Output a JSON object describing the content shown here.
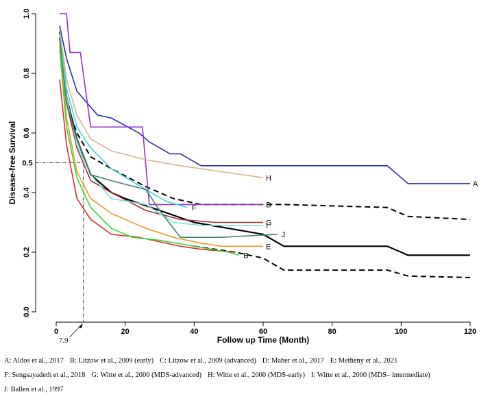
{
  "chart_data": {
    "type": "line",
    "title": "",
    "xlabel": "Follow up Time (Month)",
    "ylabel": "Disease-free Survival",
    "xlim": [
      0,
      120
    ],
    "ylim": [
      0.0,
      1.0
    ],
    "x_ticks": [
      0,
      20,
      40,
      60,
      80,
      100,
      120
    ],
    "y_ticks": [
      0.0,
      0.2,
      0.4,
      0.6,
      0.8,
      1.0
    ],
    "y_ticks_extra": [
      0.5
    ],
    "annotation": {
      "label": "7.9",
      "x": 7.9,
      "y": 0.5
    },
    "series": [
      {
        "id": "A",
        "color": "#2630a6",
        "dash": false,
        "label_x": 120,
        "points": [
          [
            1,
            0.96
          ],
          [
            3,
            0.85
          ],
          [
            6,
            0.74
          ],
          [
            12,
            0.66
          ],
          [
            16,
            0.65
          ],
          [
            24,
            0.6
          ],
          [
            27,
            0.57
          ],
          [
            33,
            0.53
          ],
          [
            36,
            0.53
          ],
          [
            42,
            0.49
          ],
          [
            60,
            0.49
          ],
          [
            96,
            0.49
          ],
          [
            102,
            0.43
          ],
          [
            120,
            0.43
          ]
        ]
      },
      {
        "id": "B",
        "color": "#000000",
        "dash": false,
        "label_x": null,
        "points": [
          [
            1,
            0.94
          ],
          [
            3,
            0.72
          ],
          [
            6,
            0.58
          ],
          [
            10,
            0.46
          ],
          [
            16,
            0.4
          ],
          [
            20,
            0.38
          ],
          [
            30,
            0.34
          ],
          [
            40,
            0.3
          ],
          [
            60,
            0.26
          ],
          [
            66,
            0.22
          ],
          [
            96,
            0.22
          ],
          [
            102,
            0.19
          ],
          [
            120,
            0.19
          ]
        ]
      },
      {
        "id": "C",
        "color": "#000000",
        "dash": true,
        "label_x": null,
        "points": [
          [
            1,
            0.92
          ],
          [
            3,
            0.7
          ],
          [
            6,
            0.6
          ],
          [
            10,
            0.52
          ],
          [
            16,
            0.48
          ],
          [
            26,
            0.42
          ],
          [
            34,
            0.38
          ],
          [
            42,
            0.36
          ],
          [
            60,
            0.36
          ],
          [
            66,
            0.36
          ],
          [
            96,
            0.35
          ],
          [
            102,
            0.32
          ],
          [
            120,
            0.31
          ],
          [
            60.5,
            0.15
          ]
        ]
      },
      {
        "id": "D",
        "color": "#9630c4",
        "dash": false,
        "label_x": 60,
        "points": [
          [
            1,
            1.0
          ],
          [
            3,
            1.0
          ],
          [
            4,
            0.87
          ],
          [
            7,
            0.87
          ],
          [
            10,
            0.62
          ],
          [
            20,
            0.62
          ],
          [
            25,
            0.62
          ],
          [
            27,
            0.36
          ],
          [
            60,
            0.36
          ]
        ]
      },
      {
        "id": "E",
        "color": "#e89a1e",
        "dash": false,
        "label_x": 60,
        "points": [
          [
            1,
            0.9
          ],
          [
            3,
            0.65
          ],
          [
            6,
            0.47
          ],
          [
            10,
            0.38
          ],
          [
            16,
            0.33
          ],
          [
            26,
            0.28
          ],
          [
            34,
            0.25
          ],
          [
            42,
            0.23
          ],
          [
            48,
            0.22
          ],
          [
            60,
            0.22
          ]
        ]
      },
      {
        "id": "F",
        "color": "#3ad6e0",
        "dash": false,
        "label_x": 38,
        "points": [
          [
            1,
            0.95
          ],
          [
            3,
            0.75
          ],
          [
            6,
            0.62
          ],
          [
            10,
            0.55
          ],
          [
            16,
            0.48
          ],
          [
            26,
            0.41
          ],
          [
            32,
            0.37
          ],
          [
            38,
            0.35
          ]
        ]
      },
      {
        "id": "G",
        "color": "#a03030",
        "dash": false,
        "label_x": 60,
        "points": [
          [
            1,
            0.93
          ],
          [
            3,
            0.7
          ],
          [
            6,
            0.55
          ],
          [
            10,
            0.44
          ],
          [
            16,
            0.4
          ],
          [
            26,
            0.34
          ],
          [
            36,
            0.31
          ],
          [
            46,
            0.3
          ],
          [
            60,
            0.3
          ]
        ]
      },
      {
        "id": "H",
        "color": "#d9b48a",
        "dash": false,
        "label_x": 60,
        "points": [
          [
            1,
            0.95
          ],
          [
            3,
            0.78
          ],
          [
            6,
            0.66
          ],
          [
            10,
            0.58
          ],
          [
            16,
            0.54
          ],
          [
            26,
            0.51
          ],
          [
            36,
            0.49
          ],
          [
            48,
            0.47
          ],
          [
            60,
            0.45
          ]
        ]
      },
      {
        "id": "I",
        "color": "#7fe0d8",
        "dash": false,
        "label_x": 60,
        "points": [
          [
            1,
            0.93
          ],
          [
            3,
            0.72
          ],
          [
            6,
            0.56
          ],
          [
            10,
            0.46
          ],
          [
            16,
            0.38
          ],
          [
            26,
            0.36
          ],
          [
            34,
            0.3
          ],
          [
            42,
            0.29
          ],
          [
            60,
            0.29
          ]
        ]
      },
      {
        "id": "J",
        "color": "#3f7f6b",
        "dash": false,
        "label_x": 64,
        "points": [
          [
            1,
            0.92
          ],
          [
            3,
            0.7
          ],
          [
            6,
            0.58
          ],
          [
            10,
            0.46
          ],
          [
            16,
            0.44
          ],
          [
            26,
            0.41
          ],
          [
            30,
            0.34
          ],
          [
            36,
            0.25
          ],
          [
            48,
            0.25
          ],
          [
            64,
            0.26
          ]
        ]
      },
      {
        "id": "K",
        "color": "#e02828",
        "dash": false,
        "label_x": null,
        "points": [
          [
            1,
            0.78
          ],
          [
            3,
            0.56
          ],
          [
            6,
            0.38
          ],
          [
            10,
            0.31
          ],
          [
            16,
            0.26
          ],
          [
            24,
            0.25
          ],
          [
            36,
            0.22
          ],
          [
            42,
            0.21
          ],
          [
            52,
            0.2
          ]
        ]
      },
      {
        "id": "L",
        "color": "#37d637",
        "dash": false,
        "label_x": null,
        "points": [
          [
            1,
            0.88
          ],
          [
            3,
            0.62
          ],
          [
            6,
            0.45
          ],
          [
            10,
            0.35
          ],
          [
            16,
            0.28
          ],
          [
            22,
            0.25
          ],
          [
            30,
            0.24
          ],
          [
            40,
            0.22
          ],
          [
            50,
            0.2
          ],
          [
            53,
            0.19
          ]
        ]
      }
    ],
    "end_labels": [
      {
        "text": "A",
        "x": 120,
        "y": 0.43
      },
      {
        "text": "H",
        "x": 60,
        "y": 0.45
      },
      {
        "text": "D",
        "x": 60,
        "y": 0.36
      },
      {
        "text": "F",
        "x": 38.5,
        "y": 0.35
      },
      {
        "text": "G",
        "x": 60,
        "y": 0.3
      },
      {
        "text": "I",
        "x": 60,
        "y": 0.29
      },
      {
        "text": "J",
        "x": 64.5,
        "y": 0.26
      },
      {
        "text": "E",
        "x": 60,
        "y": 0.22
      },
      {
        "text": "B",
        "x": 53.5,
        "y": 0.19
      }
    ],
    "legend": [
      [
        "A: Aldos et al., 2017",
        "B: Litzow et al., 2009 (early)",
        "C: Litzow et al., 2009 (advanced)",
        "D: Maher et al., 2017",
        "E: Metheny et al., 2021"
      ],
      [
        "F: Sengsayadeth et al., 2018",
        "G: Witte et al., 2000 (MDS-advanced)",
        "H: Witte et al., 2000 (MDS-early)",
        "I: Witte et al., 2000 (MDS– intermediate)"
      ],
      [
        "J: Ballen et al., 1997"
      ]
    ]
  }
}
